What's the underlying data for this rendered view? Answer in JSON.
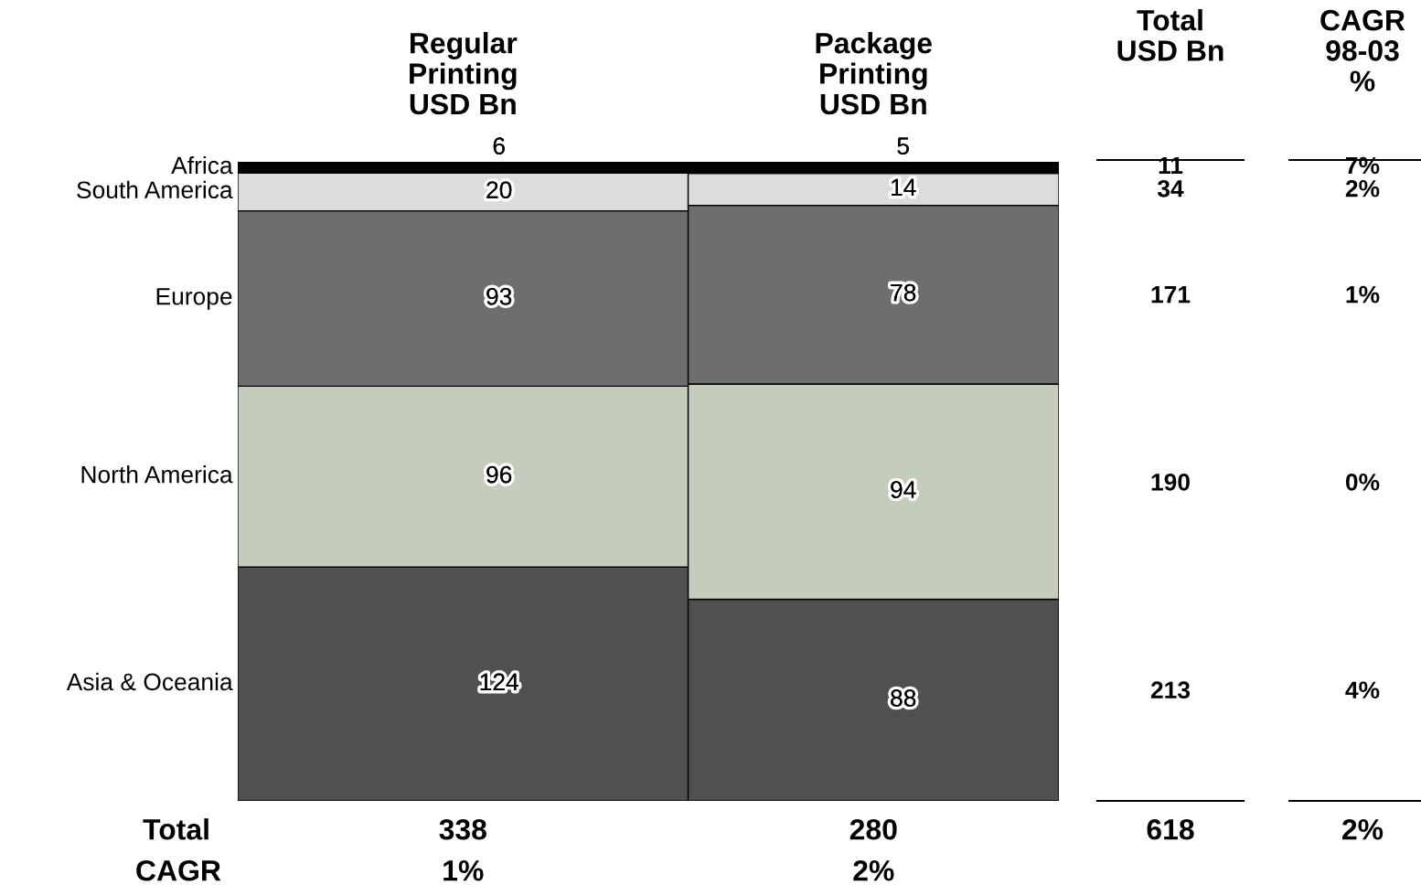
{
  "chart_data": {
    "type": "other",
    "categories": [
      "Regular\nPrinting\nUSD Bn",
      "Package\nPrinting\nUSD Bn"
    ],
    "series": [
      {
        "name": "Asia & Oceania",
        "color": "#505050",
        "values": [
          124,
          88
        ]
      },
      {
        "name": "North America",
        "color": "#c4ccbc",
        "values": [
          96,
          94
        ]
      },
      {
        "name": "Europe",
        "color": "#6e6e6e",
        "values": [
          93,
          78
        ]
      },
      {
        "name": "South America",
        "color": "#dcdcdc",
        "values": [
          20,
          14
        ]
      },
      {
        "name": "Africa",
        "color": "#000000",
        "values": [
          6,
          5
        ]
      }
    ],
    "data_labels": true,
    "totals": [
      "338",
      "280"
    ],
    "annotations": [
      "Total\nUSD Bn",
      "CAGR\n98-03\n%",
      "213",
      "190",
      "171",
      "34",
      "11",
      "4%",
      "0%",
      "1%",
      "2%",
      "7%",
      "Total",
      "CAGR",
      "1%",
      "2%",
      "618",
      "2%"
    ]
  }
}
